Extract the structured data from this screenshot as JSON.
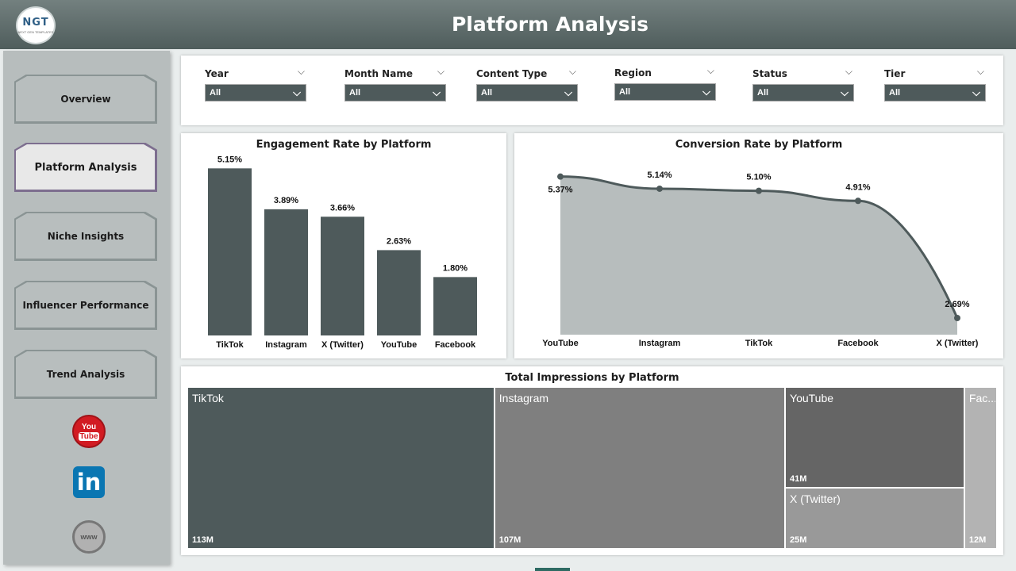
{
  "header": {
    "title": "Platform Analysis",
    "logo_text": "NGT",
    "logo_subtext": "NEXT GEN TEMPLATES"
  },
  "sidebar": {
    "items": [
      {
        "label": "Overview",
        "active": false
      },
      {
        "label": "Platform Analysis",
        "active": true
      },
      {
        "label": "Niche Insights",
        "active": false
      },
      {
        "label": "Influencer Performance",
        "active": false
      },
      {
        "label": "Trend Analysis",
        "active": false
      }
    ],
    "social": [
      {
        "icon": "youtube-icon",
        "top": "You",
        "bottom": "Tube"
      },
      {
        "icon": "linkedin-icon",
        "text": "in"
      },
      {
        "icon": "www-globe-icon",
        "text": "www"
      }
    ]
  },
  "filters": [
    {
      "label": "Year",
      "value": "All"
    },
    {
      "label": "Month Name",
      "value": "All"
    },
    {
      "label": "Content Type",
      "value": "All"
    },
    {
      "label": "Region",
      "value": "All"
    },
    {
      "label": "Status",
      "value": "All"
    },
    {
      "label": "Tier",
      "value": "All"
    }
  ],
  "colors": {
    "header": "#5f6d6c",
    "bar": "#4e5a5b",
    "area": "#b7bdbd",
    "line": "#4e5a5b",
    "sidebar": "#b7bdbd"
  },
  "chart_data": [
    {
      "type": "bar",
      "title": "Engagement Rate by Platform",
      "categories": [
        "TikTok",
        "Instagram",
        "X (Twitter)",
        "YouTube",
        "Facebook"
      ],
      "values": [
        5.15,
        3.89,
        3.66,
        2.63,
        1.8
      ],
      "value_labels": [
        "5.15%",
        "3.89%",
        "3.66%",
        "2.63%",
        "1.80%"
      ],
      "ylim": [
        0,
        5.5
      ]
    },
    {
      "type": "area",
      "title": "Conversion Rate by Platform",
      "categories": [
        "YouTube",
        "Instagram",
        "TikTok",
        "Facebook",
        "X (Twitter)"
      ],
      "values": [
        5.37,
        5.14,
        5.1,
        4.91,
        2.69
      ],
      "value_labels": [
        "5.37%",
        "5.14%",
        "5.10%",
        "4.91%",
        "2.69%"
      ],
      "ylim": [
        2.6,
        5.5
      ]
    },
    {
      "type": "treemap",
      "title": "Total Impressions by Platform",
      "items": [
        {
          "name": "TikTok",
          "value": 113,
          "label": "113M",
          "color": "#4e5a5b"
        },
        {
          "name": "Instagram",
          "value": 107,
          "label": "107M",
          "color": "#7f7f7f"
        },
        {
          "name": "YouTube",
          "value": 41,
          "label": "41M",
          "color": "#656565"
        },
        {
          "name": "X (Twitter)",
          "value": 25,
          "label": "25M",
          "color": "#999999"
        },
        {
          "name": "Fac...",
          "value": 12,
          "label": "12M",
          "color": "#b3b3b3"
        }
      ]
    }
  ]
}
